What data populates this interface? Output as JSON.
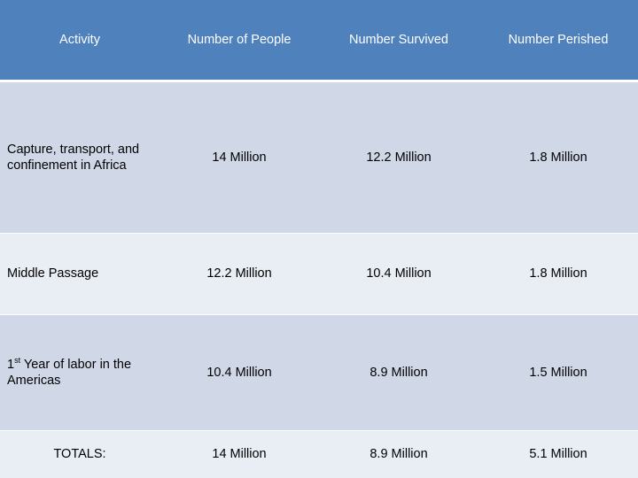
{
  "table": {
    "headers": [
      "Activity",
      "Number of People",
      "Number Survived",
      "Number Perished"
    ],
    "rows": [
      {
        "activity": "Capture, transport, and confinement in Africa",
        "people": "14 Million",
        "survived": "12.2 Million",
        "perished": "1.8 Million"
      },
      {
        "activity": "Middle Passage",
        "people": "12.2 Million",
        "survived": "10.4 Million",
        "perished": "1.8 Million"
      },
      {
        "activity_prefix": "1",
        "activity_sup": "st",
        "activity_suffix": " Year of labor in the Americas",
        "people": "10.4 Million",
        "survived": "8.9 Million",
        "perished": "1.5 Million"
      },
      {
        "activity": "TOTALS:",
        "people": "14 Million",
        "survived": "8.9 Million",
        "perished": "5.1 Million"
      }
    ]
  },
  "colors": {
    "header_bg": "#4f81bd",
    "band_dark": "#d0d8e8",
    "band_light": "#e9edf4"
  }
}
